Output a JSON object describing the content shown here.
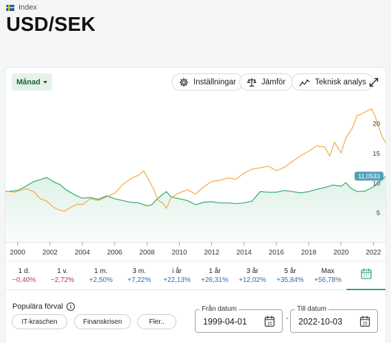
{
  "header": {
    "breadcrumb": "Index",
    "title": "USD/SEK"
  },
  "toolbar": {
    "interval_label": "Månad",
    "settings_label": "Inställningar",
    "compare_label": "Jämför",
    "technical_label": "Teknisk analys"
  },
  "chart_data": {
    "type": "line",
    "x_ticks": [
      "2000",
      "2002",
      "2004",
      "2006",
      "2008",
      "2010",
      "2012",
      "2014",
      "2016",
      "2018",
      "2020",
      "2022"
    ],
    "y_ticks": [
      "5",
      "10",
      "15",
      "20"
    ],
    "last_value_label": "11,0533",
    "series": [
      {
        "color": "#2fa86a",
        "x": [
          1999.25,
          2000,
          2000.5,
          2001,
          2001.5,
          2001.8,
          2002.2,
          2002.6,
          2003,
          2003.5,
          2004,
          2004.5,
          2005,
          2005.5,
          2006,
          2006.5,
          2007,
          2007.5,
          2008,
          2008.3,
          2008.6,
          2008.9,
          2009.2,
          2009.5,
          2010,
          2010.5,
          2011,
          2011.5,
          2012,
          2012.5,
          2013,
          2013.5,
          2014,
          2014.5,
          2015,
          2015.5,
          2016,
          2016.5,
          2017,
          2017.5,
          2018,
          2018.5,
          2019,
          2019.5,
          2020,
          2020.3,
          2020.6,
          2021,
          2021.5,
          2022,
          2022.4,
          2022.75
        ],
        "y": [
          8.5,
          8.7,
          9.4,
          10.2,
          10.6,
          10.9,
          10.2,
          9.7,
          8.8,
          8.0,
          7.4,
          7.5,
          7.2,
          7.8,
          7.3,
          7.0,
          6.7,
          6.6,
          6.1,
          6.3,
          7.2,
          7.9,
          8.5,
          7.6,
          7.3,
          7.0,
          6.3,
          6.7,
          6.8,
          6.6,
          6.6,
          6.5,
          6.6,
          6.9,
          8.5,
          8.4,
          8.4,
          8.7,
          8.5,
          8.3,
          8.5,
          8.9,
          9.2,
          9.6,
          9.4,
          10.0,
          9.1,
          8.5,
          8.6,
          9.3,
          10.2,
          11.05
        ]
      },
      {
        "color": "#f3a93a",
        "x": [
          1999.25,
          1999.8,
          2000.5,
          2001,
          2001.4,
          2001.8,
          2002.2,
          2002.5,
          2002.9,
          2003.3,
          2003.7,
          2004,
          2004.5,
          2005,
          2005.5,
          2006,
          2006.5,
          2007,
          2007.5,
          2007.8,
          2008.1,
          2008.4,
          2008.7,
          2009,
          2009.2,
          2009.5,
          2010,
          2010.5,
          2011,
          2011.5,
          2012,
          2012.5,
          2013,
          2013.5,
          2014,
          2014.5,
          2015,
          2015.5,
          2016,
          2016.5,
          2017,
          2017.5,
          2018,
          2018.5,
          2019,
          2019.3,
          2019.6,
          2020,
          2020.3,
          2020.7,
          2021,
          2021.3,
          2021.6,
          2021.9,
          2022.1,
          2022.3,
          2022.5,
          2022.75
        ],
        "y": [
          8.6,
          8.4,
          9.0,
          8.5,
          7.3,
          6.9,
          5.9,
          5.5,
          5.2,
          5.9,
          6.4,
          6.3,
          7.3,
          7.0,
          7.6,
          8.2,
          9.7,
          10.7,
          11.3,
          12.0,
          10.5,
          9.0,
          7.0,
          6.5,
          5.7,
          7.5,
          8.3,
          8.8,
          8.1,
          9.3,
          10.2,
          10.4,
          10.8,
          10.6,
          11.6,
          12.3,
          12.5,
          12.8,
          12.0,
          12.6,
          13.6,
          14.5,
          15.3,
          16.2,
          16.0,
          14.5,
          16.8,
          15.0,
          17.5,
          19.2,
          21.3,
          21.6,
          22.1,
          22.4,
          21.2,
          19.7,
          18.0,
          16.7
        ]
      }
    ]
  },
  "periods": [
    {
      "label": "1 d.",
      "change": "−0,40%",
      "sign": "neg"
    },
    {
      "label": "1 v.",
      "change": "−2,72%",
      "sign": "neg"
    },
    {
      "label": "1 m.",
      "change": "+2,50%",
      "sign": "pos"
    },
    {
      "label": "3 m.",
      "change": "+7,22%",
      "sign": "pos"
    },
    {
      "label": "i år",
      "change": "+22,13%",
      "sign": "pos"
    },
    {
      "label": "1 år",
      "change": "+26,31%",
      "sign": "pos"
    },
    {
      "label": "3 år",
      "change": "+12,02%",
      "sign": "pos"
    },
    {
      "label": "5 år",
      "change": "+35,84%",
      "sign": "pos"
    },
    {
      "label": "Max",
      "change": "+56,78%",
      "sign": "pos"
    }
  ],
  "popular": {
    "title": "Populära förval",
    "chips": [
      "IT-kraschen",
      "Finanskrisen",
      "Fler.."
    ]
  },
  "dates": {
    "from_label": "Från datum",
    "from_value": "1999-04-01",
    "to_label": "Till datum",
    "to_value": "2022-10-03",
    "separator": "-"
  }
}
